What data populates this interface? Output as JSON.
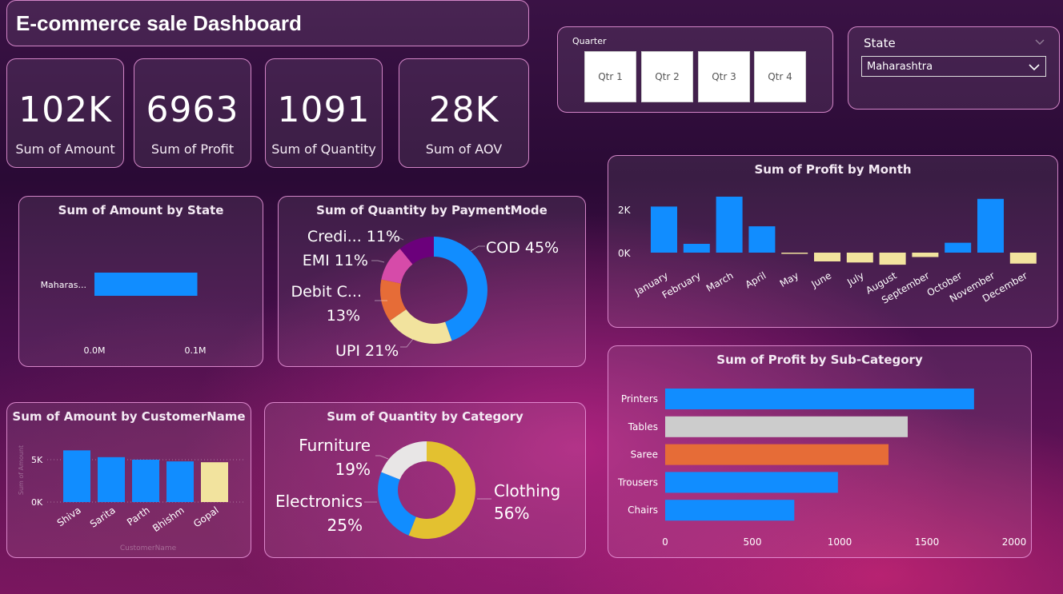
{
  "header": {
    "title": "E-commerce sale Dashboard"
  },
  "kpis": [
    {
      "value": "102K",
      "label": "Sum of Amount"
    },
    {
      "value": "6963",
      "label": "Sum of Profit"
    },
    {
      "value": "1091",
      "label": "Sum of Quantity"
    },
    {
      "value": "28K",
      "label": "Sum of AOV"
    }
  ],
  "quarter_slicer": {
    "label": "Quarter",
    "options": [
      "Qtr 1",
      "Qtr 2",
      "Qtr 3",
      "Qtr 4"
    ]
  },
  "state_slicer": {
    "label": "State",
    "selected": "Maharashtra"
  },
  "colors": {
    "blue": "#118DFF",
    "yellow": "#F2E39E",
    "orange": "#E66C37",
    "pink": "#D64BA9",
    "purple": "#6B007B",
    "gray": "#CCCCCC",
    "gold": "#E3C130",
    "offwhite": "#E8E6E6"
  },
  "chart_data": [
    {
      "id": "amount_by_state",
      "type": "bar",
      "orientation": "horizontal",
      "title": "Sum of Amount by State",
      "categories": [
        "Maharas..."
      ],
      "values": [
        0.102
      ],
      "xticks": [
        "0.0M",
        "0.1M"
      ],
      "xlim": [
        0,
        0.1
      ]
    },
    {
      "id": "quantity_by_paymentmode",
      "type": "pie",
      "donut": true,
      "title": "Sum of Quantity by PaymentMode",
      "labels": [
        "COD 45%",
        "UPI 21%",
        "Debit C... 13%",
        "EMI 11%",
        "Credi... 11%"
      ],
      "values": [
        45,
        21,
        13,
        11,
        11
      ],
      "colors": [
        "#118DFF",
        "#F2E39E",
        "#E66C37",
        "#D64BA9",
        "#6B007B"
      ]
    },
    {
      "id": "profit_by_month",
      "type": "bar",
      "title": "Sum of Profit by Month",
      "categories": [
        "January",
        "February",
        "March",
        "April",
        "May",
        "June",
        "July",
        "August",
        "September",
        "October",
        "November",
        "December"
      ],
      "values": [
        2100,
        400,
        2550,
        1200,
        -50,
        -400,
        -450,
        -550,
        -200,
        450,
        2450,
        -500
      ],
      "yticks": [
        "2K",
        "0K"
      ]
    },
    {
      "id": "amount_by_customer",
      "type": "bar",
      "title": "Sum of Amount by CustomerName",
      "categories": [
        "Shiva",
        "Sarita",
        "Parth",
        "Bhishm",
        "Gopal"
      ],
      "values": [
        6100,
        5300,
        5000,
        4800,
        4700
      ],
      "yticks": [
        "5K",
        "0K"
      ],
      "xlabel": "CustomerName",
      "ylabel": "Sum of Amount"
    },
    {
      "id": "quantity_by_category",
      "type": "pie",
      "donut": true,
      "title": "Sum of Quantity by Category",
      "labels": [
        "Clothing 56%",
        "Electronics 25%",
        "Furniture 19%"
      ],
      "values": [
        56,
        25,
        19
      ],
      "colors": [
        "#E3C130",
        "#118DFF",
        "#E8E6E6"
      ]
    },
    {
      "id": "profit_by_subcategory",
      "type": "bar",
      "orientation": "horizontal",
      "title": "Sum of Profit by Sub-Category",
      "categories": [
        "Printers",
        "Tables",
        "Saree",
        "Trousers",
        "Chairs"
      ],
      "values": [
        1770,
        1390,
        1280,
        990,
        740
      ],
      "xticks": [
        "0",
        "500",
        "1000",
        "1500",
        "2000"
      ],
      "xlim": [
        0,
        2000
      ],
      "colors": [
        "#118DFF",
        "#CCCCCC",
        "#E66C37",
        "#118DFF",
        "#118DFF"
      ]
    }
  ]
}
